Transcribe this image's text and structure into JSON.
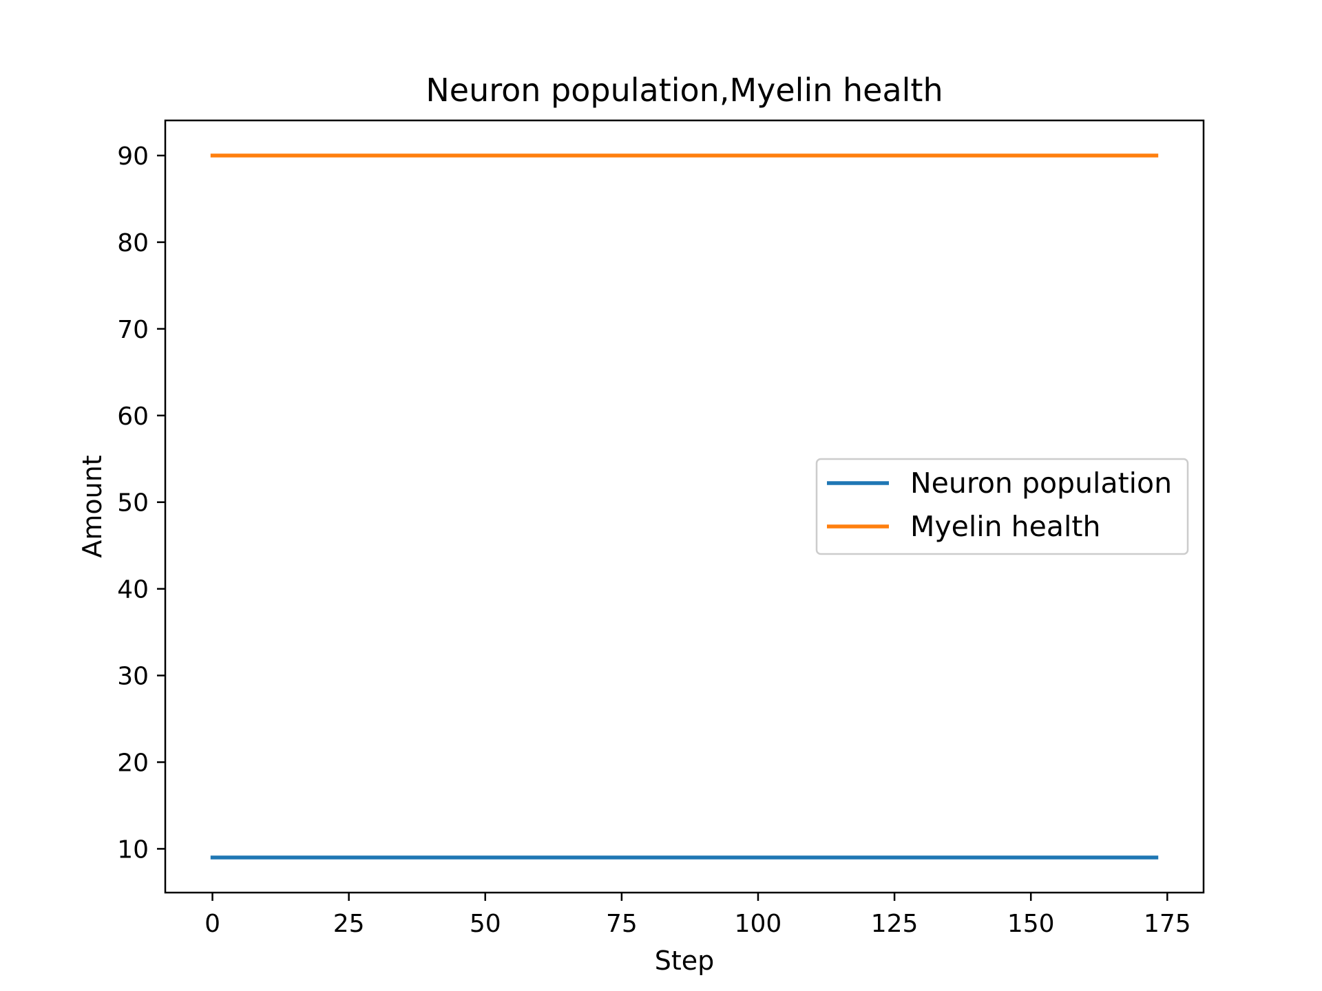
{
  "chart_data": {
    "type": "line",
    "title": "Neuron population,Myelin health",
    "xlabel": "Step",
    "ylabel": "Amount",
    "xlim": [
      -8.65,
      181.65
    ],
    "ylim": [
      4.95,
      94.05
    ],
    "x_ticks": [
      0,
      25,
      50,
      75,
      100,
      125,
      150,
      175
    ],
    "y_ticks": [
      10,
      20,
      30,
      40,
      50,
      60,
      70,
      80,
      90
    ],
    "grid": false,
    "legend_position": "center-right",
    "series": [
      {
        "name": "Neuron population",
        "color": "#1f77b4",
        "x": [
          0,
          173
        ],
        "values": [
          9,
          9
        ]
      },
      {
        "name": "Myelin health",
        "color": "#ff7f0e",
        "x": [
          0,
          173
        ],
        "values": [
          90,
          90
        ]
      }
    ]
  }
}
